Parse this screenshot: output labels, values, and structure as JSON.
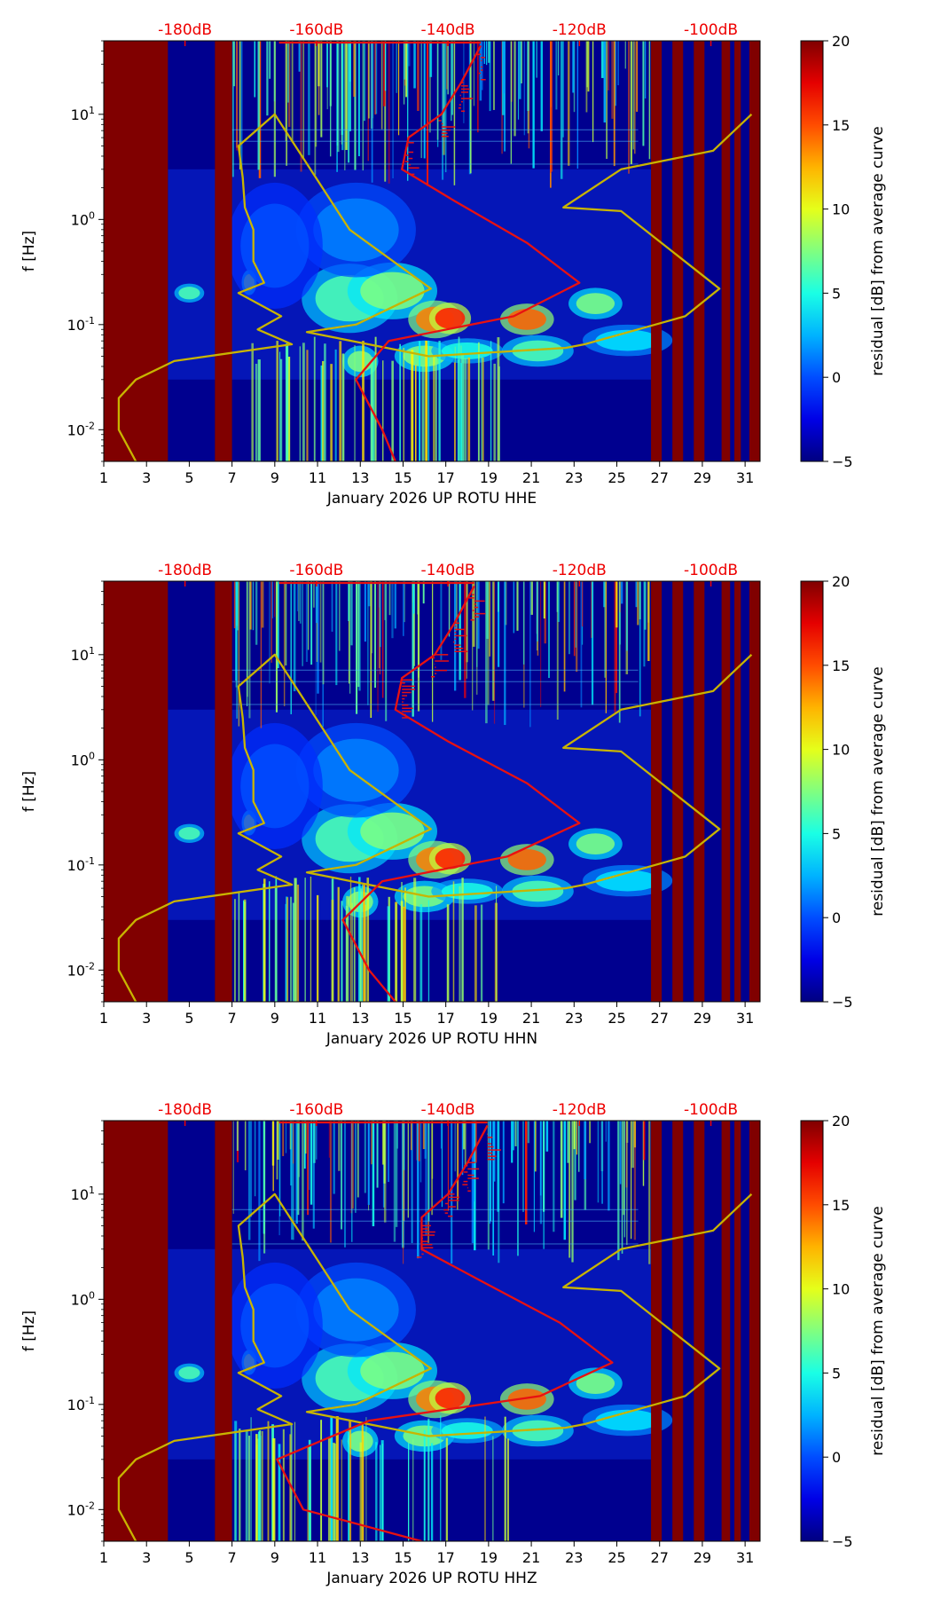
{
  "chart_data": [
    {
      "type": "heatmap",
      "title": "",
      "xlabel": "January 2026 UP ROTU  HHE",
      "ylabel": "f [Hz]",
      "x_ticks": [
        "1",
        "3",
        "5",
        "7",
        "9",
        "11",
        "13",
        "15",
        "17",
        "19",
        "21",
        "23",
        "25",
        "27",
        "29",
        "31"
      ],
      "x_range": [
        1,
        31.7
      ],
      "y_ticks": [
        "10^-2",
        "10^-1",
        "10^0",
        "10^1"
      ],
      "y_range": [
        0.005,
        50
      ],
      "top_axis_ticks": [
        "-180dB",
        "-160dB",
        "-140dB",
        "-120dB",
        "-100dB"
      ],
      "colorbar": {
        "label": "residual [dB] from average curve",
        "range": [
          -5,
          20
        ],
        "ticks": [
          "20",
          "15",
          "10",
          "5",
          "0",
          "−5"
        ],
        "colormap": "jet"
      },
      "masked_day_ranges": [
        [
          1.0,
          4.0
        ],
        [
          6.2,
          7.0
        ],
        [
          26.6,
          27.1
        ],
        [
          27.6,
          28.1
        ],
        [
          28.6,
          29.1
        ],
        [
          29.9,
          30.3
        ],
        [
          30.5,
          30.8
        ],
        [
          31.2,
          31.7
        ]
      ],
      "average_psd_curve_db": {
        "freq_hz": [
          45,
          20,
          10,
          6,
          3,
          1.5,
          0.6,
          0.25,
          0.12,
          0.07,
          0.03,
          0.01,
          0.005
        ],
        "power_db": [
          -135,
          -138,
          -141,
          -146,
          -147,
          -139,
          -128,
          -120,
          -130,
          -149,
          -154,
          -150,
          -148
        ]
      },
      "gap_marker_curve": {
        "day": [
          2.5,
          1.7,
          1.7,
          2.5,
          4.3,
          9.8,
          8.2,
          9.3,
          7.3,
          8.5,
          8.0,
          8.0,
          7.6,
          7.5,
          7.3,
          9,
          12.5,
          16.3,
          12.8,
          10.5,
          16.2,
          22.6,
          23.5,
          26.8,
          28.2,
          29.8,
          25.2,
          22.5,
          25.2,
          29.5,
          31.3
        ],
        "freq_hz": [
          0.005,
          0.01,
          0.02,
          0.03,
          0.045,
          0.065,
          0.09,
          0.12,
          0.2,
          0.25,
          0.4,
          0.8,
          1.3,
          2.5,
          5,
          10,
          0.8,
          0.22,
          0.1,
          0.085,
          0.05,
          0.06,
          0.065,
          0.1,
          0.12,
          0.22,
          1.2,
          1.3,
          3,
          4.5,
          10
        ]
      },
      "accent_colors": {
        "curve": "#e81111",
        "gap_curve": "#c8b400",
        "top_labels": "#ee0000"
      }
    },
    {
      "type": "heatmap",
      "title": "",
      "xlabel": "January 2026 UP ROTU  HHN",
      "ylabel": "f [Hz]",
      "x_ticks": [
        "1",
        "3",
        "5",
        "7",
        "9",
        "11",
        "13",
        "15",
        "17",
        "19",
        "21",
        "23",
        "25",
        "27",
        "29",
        "31"
      ],
      "x_range": [
        1,
        31.7
      ],
      "y_ticks": [
        "10^-2",
        "10^-1",
        "10^0",
        "10^1"
      ],
      "y_range": [
        0.005,
        50
      ],
      "top_axis_ticks": [
        "-180dB",
        "-160dB",
        "-140dB",
        "-120dB",
        "-100dB"
      ],
      "colorbar": {
        "label": "residual [dB] from average curve",
        "range": [
          -5,
          20
        ],
        "ticks": [
          "20",
          "15",
          "10",
          "5",
          "0",
          "−5"
        ],
        "colormap": "jet"
      },
      "masked_day_ranges": [
        [
          1.0,
          4.0
        ],
        [
          6.2,
          7.0
        ],
        [
          26.6,
          27.1
        ],
        [
          27.6,
          28.1
        ],
        [
          28.6,
          29.1
        ],
        [
          29.9,
          30.3
        ],
        [
          30.5,
          30.8
        ],
        [
          31.2,
          31.7
        ]
      ],
      "average_psd_curve_db": {
        "freq_hz": [
          45,
          20,
          10,
          6,
          3,
          1.5,
          0.6,
          0.25,
          0.12,
          0.07,
          0.03,
          0.01,
          0.005
        ],
        "power_db": [
          -136,
          -139,
          -142,
          -147,
          -148,
          -140,
          -128,
          -120,
          -131,
          -150,
          -156,
          -152,
          -148
        ]
      },
      "gap_marker_curve": {
        "day": [
          2.5,
          1.7,
          1.7,
          2.5,
          4.3,
          9.8,
          8.2,
          9.3,
          7.3,
          8.5,
          8.0,
          8.0,
          7.6,
          7.5,
          7.3,
          9,
          12.5,
          16.3,
          12.8,
          10.5,
          16.2,
          22.6,
          23.5,
          26.8,
          28.2,
          29.8,
          25.2,
          22.5,
          25.2,
          29.5,
          31.3
        ],
        "freq_hz": [
          0.005,
          0.01,
          0.02,
          0.03,
          0.045,
          0.065,
          0.09,
          0.12,
          0.2,
          0.25,
          0.4,
          0.8,
          1.3,
          2.5,
          5,
          10,
          0.8,
          0.22,
          0.1,
          0.085,
          0.05,
          0.06,
          0.065,
          0.1,
          0.12,
          0.22,
          1.2,
          1.3,
          3,
          4.5,
          10
        ]
      },
      "accent_colors": {
        "curve": "#e81111",
        "gap_curve": "#c8b400",
        "top_labels": "#ee0000"
      }
    },
    {
      "type": "heatmap",
      "title": "",
      "xlabel": "January 2026 UP ROTU  HHZ",
      "ylabel": "f [Hz]",
      "x_ticks": [
        "1",
        "3",
        "5",
        "7",
        "9",
        "11",
        "13",
        "15",
        "17",
        "19",
        "21",
        "23",
        "25",
        "27",
        "29",
        "31"
      ],
      "x_range": [
        1,
        31.7
      ],
      "y_ticks": [
        "10^-2",
        "10^-1",
        "10^0",
        "10^1"
      ],
      "y_range": [
        0.005,
        50
      ],
      "top_axis_ticks": [
        "-180dB",
        "-160dB",
        "-140dB",
        "-120dB",
        "-100dB"
      ],
      "colorbar": {
        "label": "residual [dB] from average curve",
        "range": [
          -5,
          20
        ],
        "ticks": [
          "20",
          "15",
          "10",
          "5",
          "0",
          "−5"
        ],
        "colormap": "jet"
      },
      "masked_day_ranges": [
        [
          1.0,
          4.0
        ],
        [
          6.2,
          7.0
        ],
        [
          26.6,
          27.1
        ],
        [
          27.6,
          28.1
        ],
        [
          28.6,
          29.1
        ],
        [
          29.9,
          30.3
        ],
        [
          30.5,
          30.8
        ],
        [
          31.2,
          31.7
        ]
      ],
      "average_psd_curve_db": {
        "freq_hz": [
          45,
          20,
          10,
          6,
          3,
          1.5,
          0.6,
          0.25,
          0.12,
          0.07,
          0.03,
          0.01,
          0.005
        ],
        "power_db": [
          -134,
          -137,
          -140,
          -144,
          -144,
          -135,
          -123,
          -115,
          -126,
          -152,
          -166,
          -162,
          -144
        ]
      },
      "gap_marker_curve": {
        "day": [
          2.5,
          1.7,
          1.7,
          2.5,
          4.3,
          9.8,
          8.2,
          9.3,
          7.3,
          8.5,
          8.0,
          8.0,
          7.6,
          7.5,
          7.3,
          9,
          12.5,
          16.3,
          12.8,
          10.5,
          16.2,
          22.6,
          23.5,
          26.8,
          28.2,
          29.8,
          25.2,
          22.5,
          25.2,
          29.5,
          31.3
        ],
        "freq_hz": [
          0.005,
          0.01,
          0.02,
          0.03,
          0.045,
          0.065,
          0.09,
          0.12,
          0.2,
          0.25,
          0.4,
          0.8,
          1.3,
          2.5,
          5,
          10,
          0.8,
          0.22,
          0.1,
          0.085,
          0.05,
          0.06,
          0.065,
          0.1,
          0.12,
          0.22,
          1.2,
          1.3,
          3,
          4.5,
          10
        ]
      },
      "accent_colors": {
        "curve": "#e81111",
        "gap_curve": "#c8b400",
        "top_labels": "#ee0000"
      }
    }
  ]
}
